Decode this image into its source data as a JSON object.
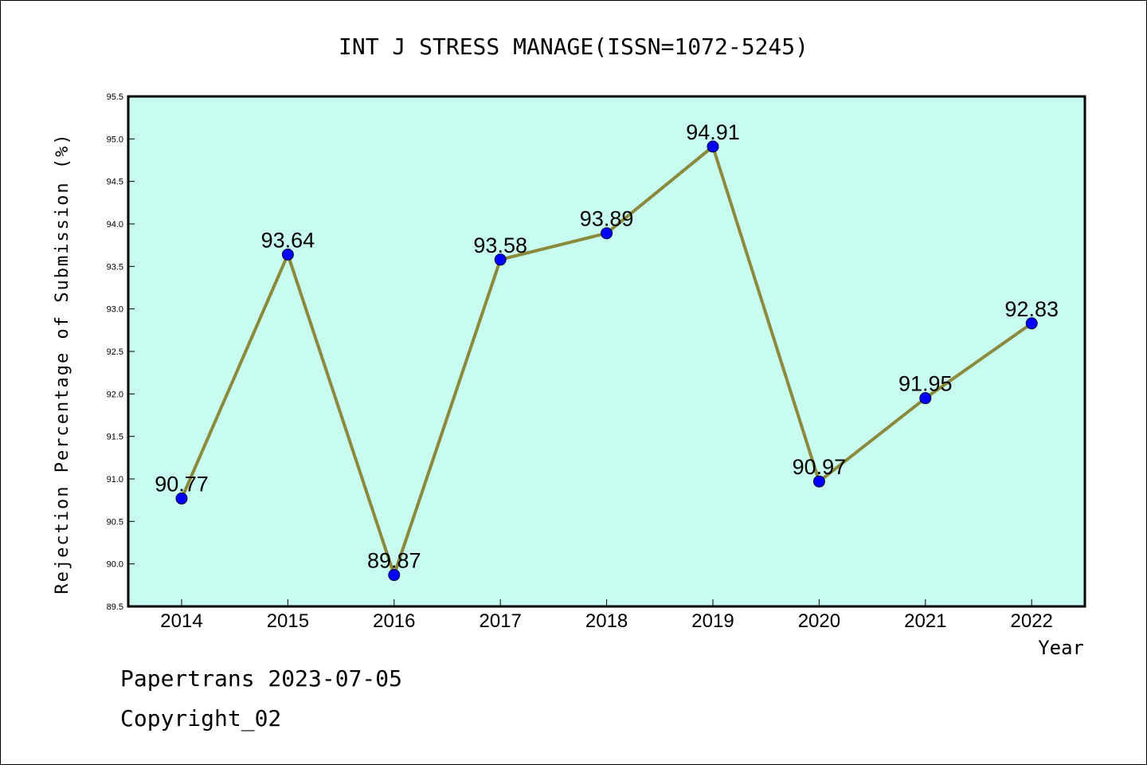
{
  "chart_data": {
    "type": "line",
    "title": "INT J STRESS MANAGE(ISSN=1072-5245)",
    "xlabel": "Year",
    "ylabel": "Rejection Percentage of Submission (%)",
    "categories": [
      "2014",
      "2015",
      "2016",
      "2017",
      "2018",
      "2019",
      "2020",
      "2021",
      "2022"
    ],
    "values": [
      90.77,
      93.64,
      89.87,
      93.58,
      93.89,
      94.91,
      90.97,
      91.95,
      92.83
    ],
    "data_labels": [
      "90.77",
      "93.64",
      "89.87",
      "93.58",
      "93.89",
      "94.91",
      "90.97",
      "91.95",
      "92.83"
    ],
    "ylim": [
      89.5,
      95.5
    ],
    "yticks": [
      "89.5",
      "90.0",
      "90.5",
      "91.0",
      "91.5",
      "92.0",
      "92.5",
      "93.0",
      "93.5",
      "94.0",
      "94.5",
      "95.0",
      "95.5"
    ],
    "grid": false,
    "colors": {
      "plot_background": "#c8fcee",
      "line": "#8b8a3c",
      "marker": "#0000ff"
    }
  },
  "footer": {
    "line1": "Papertrans 2023-07-05",
    "line2": "Copyright_02"
  }
}
